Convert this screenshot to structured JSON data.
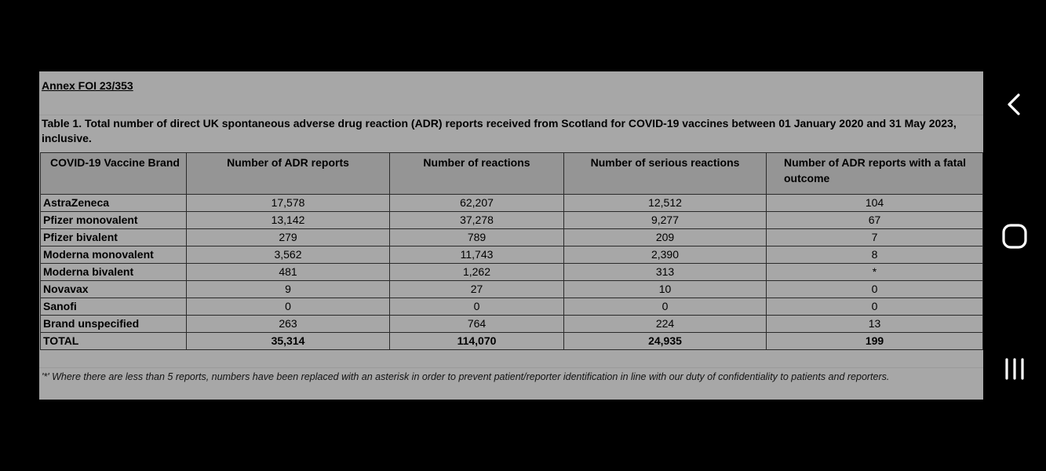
{
  "document": {
    "annex_title": "Annex FOI 23/353",
    "caption": "Table 1. Total number of direct UK spontaneous adverse drug reaction (ADR) reports received from Scotland for COVID-19 vaccines between 01 January 2020 and 31 May 2023, inclusive.",
    "footnote": "'*' Where there are less than 5 reports, numbers have been replaced with an asterisk in order to prevent patient/reporter identification in line with our duty of confidentiality to patients and reporters."
  },
  "table": {
    "headers": {
      "brand": "COVID-19 Vaccine Brand",
      "adr_reports": "Number of ADR reports",
      "reactions": "Number of reactions",
      "serious": "Number of serious reactions",
      "fatal": "Number of ADR reports with a fatal outcome"
    },
    "rows": [
      {
        "brand": "AstraZeneca",
        "adr_reports": "17,578",
        "reactions": "62,207",
        "serious": "12,512",
        "fatal": "104"
      },
      {
        "brand": "Pfizer monovalent",
        "adr_reports": "13,142",
        "reactions": "37,278",
        "serious": "9,277",
        "fatal": "67"
      },
      {
        "brand": "Pfizer bivalent",
        "adr_reports": "279",
        "reactions": "789",
        "serious": "209",
        "fatal": "7"
      },
      {
        "brand": "Moderna monovalent",
        "adr_reports": "3,562",
        "reactions": "11,743",
        "serious": "2,390",
        "fatal": "8"
      },
      {
        "brand": "Moderna bivalent",
        "adr_reports": "481",
        "reactions": "1,262",
        "serious": "313",
        "fatal": "*"
      },
      {
        "brand": "Novavax",
        "adr_reports": "9",
        "reactions": "27",
        "serious": "10",
        "fatal": "0"
      },
      {
        "brand": "Sanofi",
        "adr_reports": "0",
        "reactions": "0",
        "serious": "0",
        "fatal": "0"
      },
      {
        "brand": "Brand unspecified",
        "adr_reports": "263",
        "reactions": "764",
        "serious": "224",
        "fatal": "13"
      },
      {
        "brand": "TOTAL",
        "adr_reports": "35,314",
        "reactions": "114,070",
        "serious": "24,935",
        "fatal": "199"
      }
    ]
  },
  "navigation": {
    "back_icon": "chevron-left-icon",
    "home_icon": "rounded-square-icon",
    "recents_icon": "three-bars-icon"
  },
  "colors": {
    "background": "#000000",
    "sheet": "#a7a7a7",
    "header_fill": "#959595",
    "nav_icon": "#ffffff"
  }
}
